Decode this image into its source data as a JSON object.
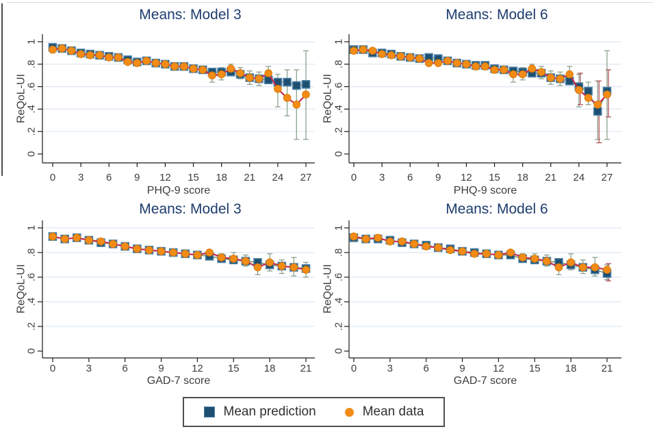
{
  "colors": {
    "prediction_fill": "#1c4f70",
    "prediction_stroke": "#4d7fa5",
    "data_fill": "#f28c17",
    "data_stroke": "#db7b08",
    "prediction_line": "#7b8e54",
    "data_line": "#c52a4d",
    "ci_prediction": "#8ca18e",
    "ci_data": "#b05257",
    "grid": "#dce6f2",
    "axis": "#1a1a1a",
    "tick_text": "#3d3d3d",
    "panel_title": "#1e3c6e",
    "legend_border": "#4f4f4f"
  },
  "legend": {
    "items": [
      {
        "label": "Mean prediction",
        "marker": "square"
      },
      {
        "label": "Mean data",
        "marker": "circle"
      }
    ]
  },
  "chart_data": [
    {
      "type": "line",
      "id": "phq9-model3",
      "title": "Means: Model 3",
      "xlabel": "PHQ-9 score",
      "ylabel": "ReQoL-UI",
      "xlim": [
        0,
        27
      ],
      "ylim": [
        0,
        1
      ],
      "xticks": [
        0,
        3,
        6,
        9,
        12,
        15,
        18,
        21,
        24,
        27
      ],
      "yticks": [
        {
          "value": 0,
          "label": "0"
        },
        {
          "value": 0.2,
          "label": ".2"
        },
        {
          "value": 0.4,
          "label": ".4"
        },
        {
          "value": 0.6,
          "label": ".6"
        },
        {
          "value": 0.8,
          "label": ".8"
        },
        {
          "value": 1,
          "label": "1"
        }
      ],
      "x": [
        0,
        1,
        2,
        3,
        4,
        5,
        6,
        7,
        8,
        9,
        10,
        11,
        12,
        13,
        14,
        15,
        16,
        17,
        18,
        19,
        20,
        21,
        22,
        23,
        24,
        25,
        26,
        27
      ],
      "series": [
        {
          "name": "Mean prediction",
          "values": [
            0.95,
            0.94,
            0.92,
            0.9,
            0.89,
            0.88,
            0.87,
            0.86,
            0.84,
            0.82,
            0.83,
            0.81,
            0.8,
            0.78,
            0.78,
            0.76,
            0.75,
            0.73,
            0.73,
            0.73,
            0.71,
            0.68,
            0.67,
            0.66,
            0.64,
            0.64,
            0.61,
            0.62
          ]
        },
        {
          "name": "Mean data",
          "values": [
            0.93,
            0.94,
            0.92,
            0.89,
            0.88,
            0.88,
            0.86,
            0.86,
            0.82,
            0.81,
            0.83,
            0.81,
            0.8,
            0.78,
            0.78,
            0.76,
            0.75,
            0.7,
            0.71,
            0.76,
            0.72,
            0.68,
            0.67,
            0.72,
            0.58,
            0.5,
            0.44,
            0.53
          ]
        }
      ],
      "ci_lo": [
        0.9,
        0.92,
        0.9,
        0.87,
        0.87,
        0.86,
        0.84,
        0.84,
        0.8,
        0.79,
        0.8,
        0.78,
        0.77,
        0.75,
        0.75,
        0.73,
        0.72,
        0.64,
        0.66,
        0.72,
        0.67,
        0.62,
        0.61,
        0.66,
        0.42,
        0.34,
        0.13,
        0.13
      ],
      "ci_hi": [
        0.96,
        0.96,
        0.94,
        0.92,
        0.91,
        0.9,
        0.88,
        0.88,
        0.85,
        0.84,
        0.86,
        0.84,
        0.83,
        0.81,
        0.81,
        0.79,
        0.78,
        0.76,
        0.77,
        0.8,
        0.77,
        0.74,
        0.73,
        0.78,
        0.71,
        0.75,
        0.75,
        0.92
      ],
      "data_ci": []
    },
    {
      "type": "line",
      "id": "phq9-model6",
      "title": "Means: Model 6",
      "xlabel": "PHQ-9 score",
      "ylabel": "ReQoL-UI",
      "xlim": [
        0,
        27
      ],
      "ylim": [
        0,
        1
      ],
      "xticks": [
        0,
        3,
        6,
        9,
        12,
        15,
        18,
        21,
        24,
        27
      ],
      "yticks": [
        {
          "value": 0,
          "label": "0"
        },
        {
          "value": 0.2,
          "label": ".2"
        },
        {
          "value": 0.4,
          "label": ".4"
        },
        {
          "value": 0.6,
          "label": ".6"
        },
        {
          "value": 0.8,
          "label": ".8"
        },
        {
          "value": 1,
          "label": "1"
        }
      ],
      "x": [
        0,
        1,
        2,
        3,
        4,
        5,
        6,
        7,
        8,
        9,
        10,
        11,
        12,
        13,
        14,
        15,
        16,
        17,
        18,
        19,
        20,
        21,
        22,
        23,
        24,
        25,
        26,
        27
      ],
      "series": [
        {
          "name": "Mean prediction",
          "values": [
            0.93,
            0.93,
            0.9,
            0.9,
            0.89,
            0.87,
            0.86,
            0.85,
            0.86,
            0.85,
            0.83,
            0.81,
            0.8,
            0.79,
            0.79,
            0.76,
            0.75,
            0.74,
            0.73,
            0.72,
            0.72,
            0.68,
            0.67,
            0.65,
            0.6,
            0.56,
            0.38,
            0.56
          ]
        },
        {
          "name": "Mean data",
          "values": [
            0.92,
            0.93,
            0.92,
            0.89,
            0.88,
            0.87,
            0.86,
            0.85,
            0.81,
            0.81,
            0.83,
            0.81,
            0.8,
            0.78,
            0.78,
            0.75,
            0.75,
            0.71,
            0.71,
            0.76,
            0.73,
            0.68,
            0.67,
            0.71,
            0.57,
            0.5,
            0.44,
            0.53
          ]
        }
      ],
      "ci_lo": [
        0.9,
        0.91,
        0.88,
        0.87,
        0.86,
        0.85,
        0.84,
        0.83,
        0.79,
        0.79,
        0.8,
        0.78,
        0.77,
        0.75,
        0.75,
        0.72,
        0.72,
        0.64,
        0.66,
        0.72,
        0.67,
        0.62,
        0.61,
        0.64,
        0.42,
        0.44,
        0.13,
        0.13
      ],
      "ci_hi": [
        0.95,
        0.95,
        0.93,
        0.92,
        0.91,
        0.89,
        0.88,
        0.87,
        0.84,
        0.84,
        0.86,
        0.84,
        0.83,
        0.81,
        0.81,
        0.79,
        0.78,
        0.76,
        0.77,
        0.8,
        0.78,
        0.74,
        0.73,
        0.78,
        0.71,
        0.64,
        0.65,
        0.92
      ],
      "data_ci": [
        [
          24,
          0.44,
          0.72
        ],
        [
          26,
          0.1,
          0.65
        ],
        [
          27,
          0.33,
          0.75
        ]
      ]
    },
    {
      "type": "line",
      "id": "gad7-model3",
      "title": "Means: Model 3",
      "xlabel": "GAD-7 score",
      "ylabel": "ReQoL-UI",
      "xlim": [
        0,
        21
      ],
      "ylim": [
        0,
        1
      ],
      "xticks": [
        0,
        3,
        6,
        9,
        12,
        15,
        18,
        21
      ],
      "yticks": [
        {
          "value": 0,
          "label": "0"
        },
        {
          "value": 0.2,
          "label": ".2"
        },
        {
          "value": 0.4,
          "label": ".4"
        },
        {
          "value": 0.6,
          "label": ".6"
        },
        {
          "value": 0.8,
          "label": ".8"
        },
        {
          "value": 1,
          "label": "1"
        }
      ],
      "x": [
        0,
        1,
        2,
        3,
        4,
        5,
        6,
        7,
        8,
        9,
        10,
        11,
        12,
        13,
        14,
        15,
        16,
        17,
        18,
        19,
        20,
        21
      ],
      "series": [
        {
          "name": "Mean prediction",
          "values": [
            0.93,
            0.91,
            0.92,
            0.9,
            0.88,
            0.87,
            0.85,
            0.83,
            0.82,
            0.81,
            0.8,
            0.79,
            0.78,
            0.77,
            0.75,
            0.74,
            0.73,
            0.72,
            0.7,
            0.69,
            0.68,
            0.67
          ]
        },
        {
          "name": "Mean data",
          "values": [
            0.93,
            0.91,
            0.92,
            0.9,
            0.89,
            0.87,
            0.85,
            0.83,
            0.82,
            0.81,
            0.8,
            0.79,
            0.78,
            0.8,
            0.76,
            0.75,
            0.73,
            0.68,
            0.72,
            0.69,
            0.68,
            0.66
          ]
        }
      ],
      "ci_lo": [
        0.91,
        0.89,
        0.9,
        0.88,
        0.86,
        0.85,
        0.83,
        0.81,
        0.8,
        0.79,
        0.77,
        0.76,
        0.75,
        0.77,
        0.73,
        0.72,
        0.69,
        0.62,
        0.65,
        0.63,
        0.61,
        0.6
      ],
      "ci_hi": [
        0.95,
        0.93,
        0.94,
        0.92,
        0.9,
        0.89,
        0.87,
        0.85,
        0.84,
        0.83,
        0.82,
        0.81,
        0.8,
        0.82,
        0.79,
        0.8,
        0.78,
        0.73,
        0.79,
        0.74,
        0.76,
        0.72
      ],
      "data_ci": []
    },
    {
      "type": "line",
      "id": "gad7-model6",
      "title": "Means: Model 6",
      "xlabel": "GAD-7 score",
      "ylabel": "ReQoL-UI",
      "xlim": [
        0,
        21
      ],
      "ylim": [
        0,
        1
      ],
      "xticks": [
        0,
        3,
        6,
        9,
        12,
        15,
        18,
        21
      ],
      "yticks": [
        {
          "value": 0,
          "label": "0"
        },
        {
          "value": 0.2,
          "label": ".2"
        },
        {
          "value": 0.4,
          "label": ".4"
        },
        {
          "value": 0.6,
          "label": ".6"
        },
        {
          "value": 0.8,
          "label": ".8"
        },
        {
          "value": 1,
          "label": "1"
        }
      ],
      "x": [
        0,
        1,
        2,
        3,
        4,
        5,
        6,
        7,
        8,
        9,
        10,
        11,
        12,
        13,
        14,
        15,
        16,
        17,
        18,
        19,
        20,
        21
      ],
      "series": [
        {
          "name": "Mean prediction",
          "values": [
            0.92,
            0.91,
            0.91,
            0.9,
            0.88,
            0.87,
            0.86,
            0.84,
            0.83,
            0.81,
            0.8,
            0.79,
            0.78,
            0.78,
            0.75,
            0.74,
            0.73,
            0.72,
            0.7,
            0.68,
            0.66,
            0.63
          ]
        },
        {
          "name": "Mean data",
          "values": [
            0.93,
            0.91,
            0.92,
            0.89,
            0.89,
            0.87,
            0.85,
            0.84,
            0.82,
            0.81,
            0.79,
            0.79,
            0.78,
            0.8,
            0.76,
            0.75,
            0.73,
            0.68,
            0.72,
            0.68,
            0.68,
            0.66
          ]
        }
      ],
      "ci_lo": [
        0.9,
        0.89,
        0.89,
        0.88,
        0.86,
        0.85,
        0.84,
        0.82,
        0.8,
        0.79,
        0.77,
        0.76,
        0.75,
        0.77,
        0.73,
        0.71,
        0.69,
        0.62,
        0.66,
        0.63,
        0.61,
        0.58
      ],
      "ci_hi": [
        0.94,
        0.93,
        0.93,
        0.92,
        0.9,
        0.89,
        0.88,
        0.86,
        0.84,
        0.83,
        0.82,
        0.81,
        0.8,
        0.82,
        0.79,
        0.79,
        0.78,
        0.73,
        0.79,
        0.74,
        0.76,
        0.7
      ],
      "data_ci": [
        [
          21,
          0.57,
          0.71
        ]
      ]
    }
  ]
}
